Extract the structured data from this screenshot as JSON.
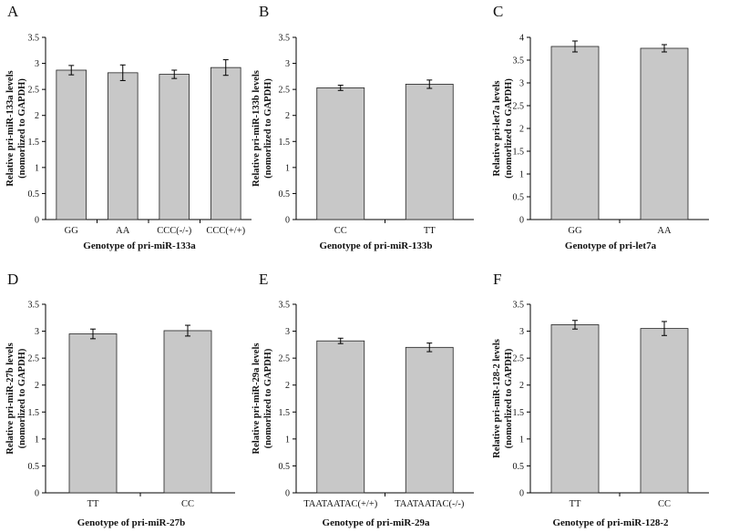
{
  "chart_data": [
    {
      "type": "bar",
      "panel": "A",
      "categories": [
        "GG",
        "AA",
        "CCC(-/-)",
        "CCC(+/+)"
      ],
      "values": [
        2.87,
        2.82,
        2.79,
        2.92
      ],
      "errors": [
        0.09,
        0.15,
        0.08,
        0.15
      ],
      "ylim": [
        0,
        3.5
      ],
      "yticks": [
        "0",
        "0.5",
        "1",
        "1.5",
        "2",
        "2.5",
        "3",
        "3.5"
      ],
      "xlabel": "Genotype of pri-miR-133a",
      "ylabel": [
        "Relative pri-miR-133a levels",
        "(nomorlized to GAPDH)"
      ],
      "bar_color": "#c8c8c8"
    },
    {
      "type": "bar",
      "panel": "B",
      "categories": [
        "CC",
        "TT"
      ],
      "values": [
        2.53,
        2.6
      ],
      "errors": [
        0.05,
        0.08
      ],
      "ylim": [
        0,
        3.5
      ],
      "yticks": [
        "0",
        "0.5",
        "1",
        "1.5",
        "2",
        "2.5",
        "3",
        "3.5"
      ],
      "xlabel": "Genotype of pri-miR-133b",
      "ylabel": [
        "Relative pri-miR-133b levels",
        "(nomorlized to GAPDH)"
      ],
      "bar_color": "#c8c8c8"
    },
    {
      "type": "bar",
      "panel": "C",
      "categories": [
        "GG",
        "AA"
      ],
      "values": [
        3.8,
        3.76
      ],
      "errors": [
        0.12,
        0.08
      ],
      "ylim": [
        0,
        4
      ],
      "yticks": [
        "0",
        "0.5",
        "1",
        "1.5",
        "2",
        "2.5",
        "3",
        "3.5",
        "4"
      ],
      "xlabel": "Genotype of pri-let7a",
      "ylabel": [
        "Relative pri-let7a levels",
        "(nomorlized to GAPDH)"
      ],
      "bar_color": "#c8c8c8"
    },
    {
      "type": "bar",
      "panel": "D",
      "categories": [
        "TT",
        "CC"
      ],
      "values": [
        2.95,
        3.01
      ],
      "errors": [
        0.09,
        0.1
      ],
      "ylim": [
        0,
        3.5
      ],
      "yticks": [
        "0",
        "0.5",
        "1",
        "1.5",
        "2",
        "2.5",
        "3",
        "3.5"
      ],
      "xlabel": "Genotype of pri-miR-27b",
      "ylabel": [
        "Relative pri-miR-27b levels",
        "(nomorlized to GAPDH)"
      ],
      "bar_color": "#c8c8c8"
    },
    {
      "type": "bar",
      "panel": "E",
      "categories": [
        "TAATAATAC(+/+)",
        "TAATAATAC(-/-)"
      ],
      "values": [
        2.82,
        2.7
      ],
      "errors": [
        0.05,
        0.08
      ],
      "ylim": [
        0,
        3.5
      ],
      "yticks": [
        "0",
        "0.5",
        "1",
        "1.5",
        "2",
        "2.5",
        "3",
        "3.5"
      ],
      "xlabel": "Genotype of pri-miR-29a",
      "ylabel": [
        "Relative pri-miR-29a levels",
        "(nomorlized to GAPDH)"
      ],
      "bar_color": "#c8c8c8"
    },
    {
      "type": "bar",
      "panel": "F",
      "categories": [
        "TT",
        "CC"
      ],
      "values": [
        3.12,
        3.05
      ],
      "errors": [
        0.08,
        0.13
      ],
      "ylim": [
        0,
        3.5
      ],
      "yticks": [
        "0",
        "0.5",
        "1",
        "1.5",
        "2",
        "2.5",
        "3",
        "3.5"
      ],
      "xlabel": "Genotype of pri-miR-128-2",
      "ylabel": [
        "Relative pri-miR-128-2 levels",
        "(nomorlized to GAPDH)"
      ],
      "bar_color": "#c8c8c8"
    }
  ]
}
